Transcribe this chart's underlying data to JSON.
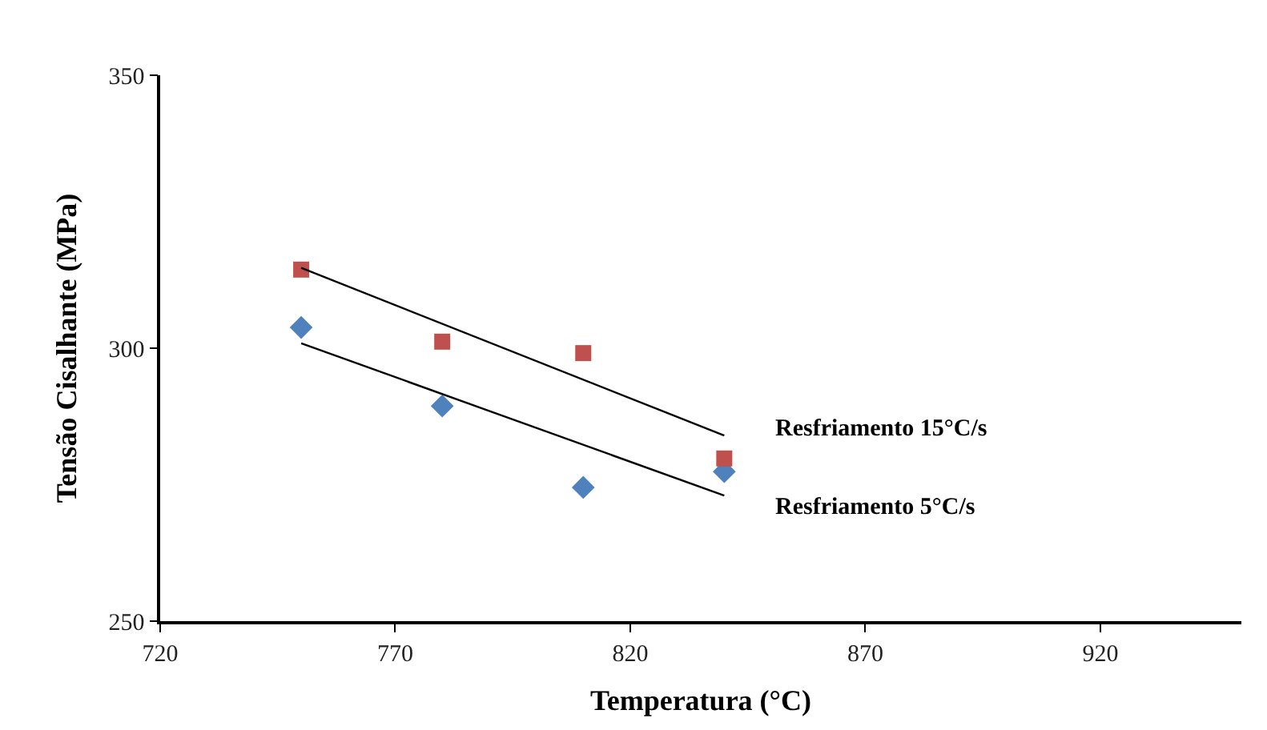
{
  "chart_data": {
    "type": "scatter",
    "xlabel": "Temperatura (°C)",
    "ylabel": "Tensão Cisalhante (MPa)",
    "xlim": [
      720,
      950
    ],
    "xticks": [
      720,
      770,
      820,
      870,
      920
    ],
    "ylim": [
      250,
      350
    ],
    "yticks": [
      250,
      300,
      350
    ],
    "legend": false,
    "series": [
      {
        "name": "Resfriamento 5°C/s",
        "marker": "diamond",
        "color": "#4f81bd",
        "x": [
          750,
          780,
          810,
          840
        ],
        "values": [
          303.8,
          289.4,
          274.5,
          277.4
        ]
      },
      {
        "name": "Resfriamento 15°C/s",
        "marker": "square",
        "color": "#c0504d",
        "x": [
          750,
          780,
          810,
          840
        ],
        "values": [
          314.4,
          301.2,
          299.1,
          279.8
        ]
      },
      {
        "type": "line",
        "color": "#000000",
        "x": [
          750,
          840
        ],
        "values": [
          300.9,
          273.0
        ]
      },
      {
        "type": "line",
        "color": "#000000",
        "x": [
          750,
          840
        ],
        "values": [
          314.7,
          284.0
        ]
      }
    ]
  }
}
